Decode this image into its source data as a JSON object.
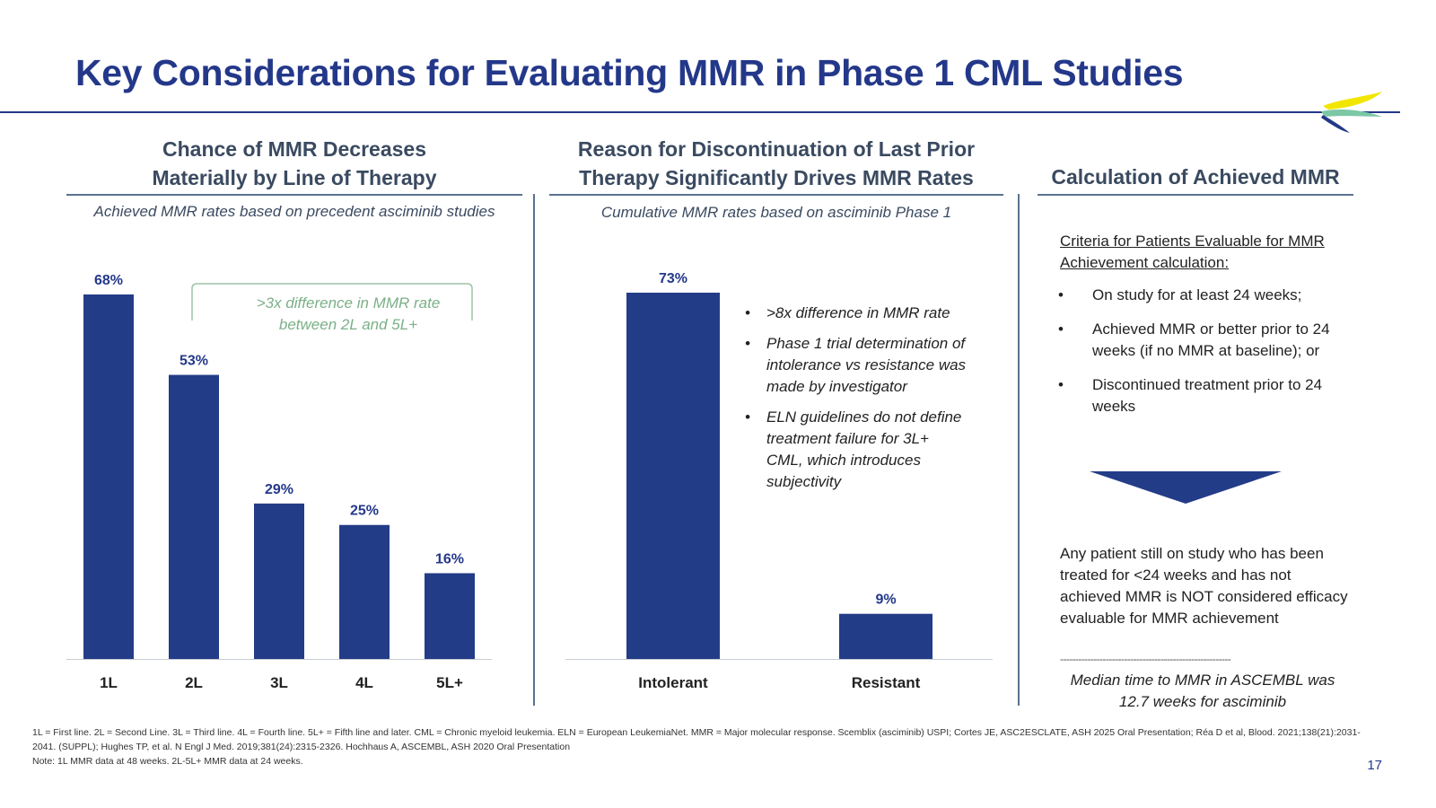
{
  "title": "Key Considerations for Evaluating MMR in Phase 1 CML Studies",
  "left_panel": {
    "heading_line1": "Chance of MMR Decreases",
    "heading_line2": "Materially by Line of Therapy",
    "subtitle": "Achieved MMR rates based on precedent asciminib studies",
    "callout_line1": ">3x difference in MMR rate",
    "callout_line2": "between 2L and 5L+"
  },
  "middle_panel": {
    "heading_line1": "Reason for Discontinuation of Last Prior",
    "heading_line2": "Therapy Significantly Drives MMR Rates",
    "subtitle": "Cumulative MMR rates based on asciminib Phase 1",
    "bullets": [
      ">8x difference in MMR rate",
      "Phase 1 trial determination of intolerance vs resistance was made by investigator",
      "ELN guidelines do not define treatment failure for 3L+ CML, which introduces subjectivity"
    ]
  },
  "right_panel": {
    "heading": "Calculation of Achieved MMR",
    "criteria_heading": "Criteria for Patients Evaluable for MMR Achievement calculation:",
    "criteria": [
      "On study for at least 24 weeks;",
      "Achieved MMR or better prior to 24 weeks (if no MMR at baseline); or",
      "Discontinued treatment prior to 24 weeks"
    ],
    "conclusion": "Any patient still on study who has been treated for <24 weeks and has not achieved MMR is NOT considered efficacy evaluable for MMR achievement",
    "separator": "--------------------------------------------------------",
    "median": "Median time to MMR in ASCEMBL was 12.7 weeks for asciminib"
  },
  "bullet_char": "•",
  "footnotes": {
    "line1": "1L = First line. 2L = Second Line. 3L = Third line. 4L = Fourth line. 5L+ = Fifth line and later. CML = Chronic myeloid leukemia. ELN = European LeukemiaNet. MMR = Major molecular response. Scemblix (asciminib) USPI; Cortes JE, ASC2ESCLATE, ASH 2025 Oral Presentation; Réa D et al,  Blood. 2021;138(21):2031-2041. (SUPPL);  Hughes TP, et al. N Engl J Med. 2019;381(24):2315-2326. Hochhaus A, ASCEMBL, ASH 2020 Oral Presentation",
    "line2": "Note: 1L MMR data at 48 weeks. 2L-5L+ MMR data at 24 weeks."
  },
  "page_number": "17",
  "colors": {
    "bar": "#233c88",
    "title": "#24388a",
    "callout": "#7bb087",
    "logo_yellow": "#f2e600",
    "logo_green": "#7cc7a6",
    "logo_navy": "#24388a"
  },
  "chart_data": [
    {
      "type": "bar",
      "categories": [
        "1L",
        "2L",
        "3L",
        "4L",
        "5L+"
      ],
      "values": [
        68,
        53,
        29,
        25,
        16
      ],
      "data_labels": [
        "68%",
        "53%",
        "29%",
        "25%",
        "16%"
      ],
      "unit": "%",
      "ylim": [
        0,
        68
      ],
      "grid": false,
      "legend": "none"
    },
    {
      "type": "bar",
      "categories": [
        "Intolerant",
        "Resistant"
      ],
      "values": [
        73,
        9
      ],
      "data_labels": [
        "73%",
        "9%"
      ],
      "unit": "%",
      "ylim": [
        0,
        73
      ],
      "grid": false,
      "legend": "none"
    }
  ]
}
